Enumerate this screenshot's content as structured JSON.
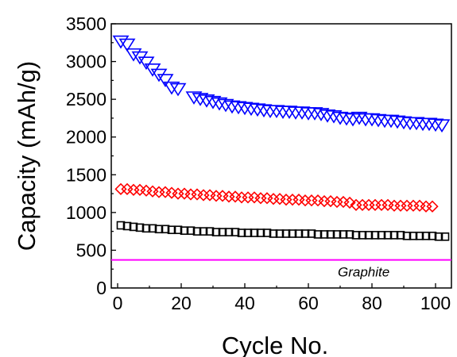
{
  "chart_data": {
    "type": "scatter",
    "title": "",
    "xlabel": "Cycle No.",
    "ylabel": "Capacity (mAh/g)",
    "xlim": [
      -2,
      105
    ],
    "ylim": [
      0,
      3500
    ],
    "xticks": [
      0,
      20,
      40,
      60,
      80,
      100
    ],
    "yticks": [
      0,
      500,
      1000,
      1500,
      2000,
      2500,
      3000,
      3500
    ],
    "grid": false,
    "legend": "none",
    "series": [
      {
        "marker": "triangle-down",
        "color": "#0000ff",
        "x": [
          1,
          3,
          5,
          7,
          9,
          11,
          13,
          15,
          17,
          19,
          24,
          26,
          28,
          30,
          32,
          34,
          36,
          38,
          40,
          42,
          44,
          46,
          48,
          50,
          52,
          54,
          56,
          58,
          60,
          62,
          64,
          66,
          68,
          70,
          72,
          74,
          76,
          78,
          80,
          82,
          84,
          86,
          88,
          90,
          92,
          94,
          96,
          98,
          100,
          102
        ],
        "y": [
          3270,
          3230,
          3100,
          3060,
          2990,
          2900,
          2830,
          2760,
          2660,
          2640,
          2530,
          2510,
          2490,
          2470,
          2450,
          2430,
          2410,
          2400,
          2390,
          2380,
          2370,
          2360,
          2350,
          2350,
          2340,
          2340,
          2330,
          2330,
          2320,
          2320,
          2310,
          2290,
          2280,
          2260,
          2250,
          2240,
          2260,
          2240,
          2240,
          2230,
          2220,
          2220,
          2210,
          2200,
          2190,
          2190,
          2180,
          2180,
          2170,
          2160
        ]
      },
      {
        "marker": "diamond",
        "color": "#ff0000",
        "x": [
          1,
          3,
          5,
          7,
          9,
          11,
          13,
          15,
          17,
          19,
          21,
          23,
          25,
          27,
          29,
          31,
          33,
          35,
          37,
          39,
          41,
          43,
          45,
          47,
          49,
          51,
          53,
          55,
          57,
          59,
          61,
          63,
          65,
          67,
          69,
          71,
          73,
          75,
          77,
          79,
          81,
          83,
          85,
          87,
          89,
          91,
          93,
          95,
          97,
          99
        ],
        "y": [
          1310,
          1310,
          1300,
          1300,
          1290,
          1280,
          1270,
          1270,
          1260,
          1250,
          1250,
          1240,
          1240,
          1230,
          1230,
          1220,
          1220,
          1210,
          1210,
          1200,
          1200,
          1200,
          1190,
          1190,
          1180,
          1180,
          1170,
          1170,
          1170,
          1160,
          1160,
          1160,
          1150,
          1150,
          1140,
          1140,
          1130,
          1100,
          1100,
          1100,
          1100,
          1100,
          1100,
          1090,
          1090,
          1090,
          1090,
          1090,
          1080,
          1080
        ]
      },
      {
        "marker": "square",
        "color": "#000000",
        "x": [
          1,
          3,
          5,
          7,
          9,
          11,
          13,
          15,
          17,
          19,
          21,
          23,
          25,
          27,
          29,
          31,
          33,
          35,
          37,
          39,
          41,
          43,
          45,
          47,
          49,
          51,
          53,
          55,
          57,
          59,
          61,
          63,
          65,
          67,
          69,
          71,
          73,
          75,
          77,
          79,
          81,
          83,
          85,
          87,
          89,
          91,
          93,
          95,
          97,
          99,
          101,
          103
        ],
        "y": [
          830,
          820,
          810,
          800,
          790,
          790,
          780,
          780,
          770,
          770,
          760,
          760,
          750,
          750,
          750,
          740,
          740,
          740,
          740,
          730,
          730,
          730,
          730,
          730,
          720,
          720,
          720,
          720,
          720,
          720,
          720,
          710,
          710,
          710,
          710,
          710,
          710,
          700,
          700,
          700,
          700,
          700,
          700,
          700,
          700,
          690,
          690,
          690,
          690,
          690,
          680,
          680
        ]
      }
    ],
    "reference_line": {
      "label": "Graphite",
      "y": 372,
      "color": "#ff00ff"
    }
  }
}
